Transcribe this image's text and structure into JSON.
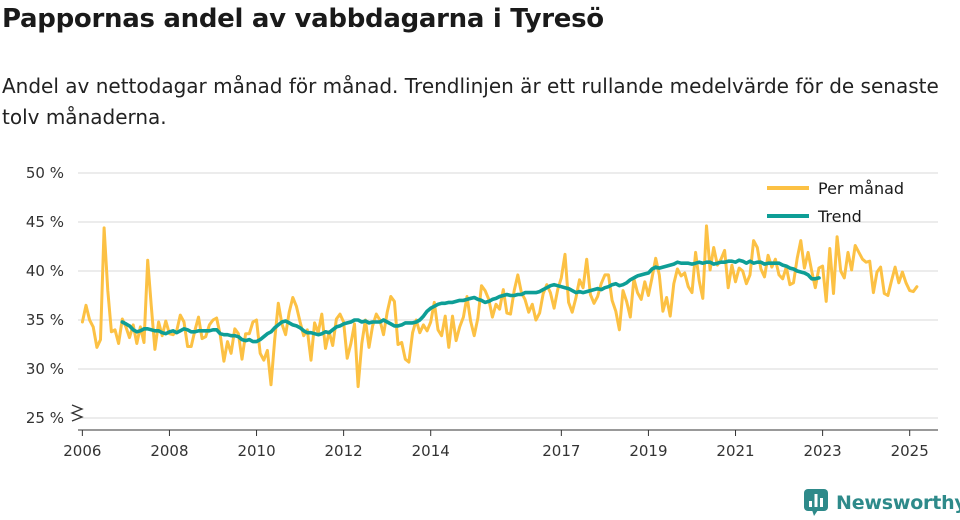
{
  "title": "Pappornas andel av vabbdagarna i Tyresö",
  "subtitle": "Andel av nettodagar månad för månad. Trendlinjen är ett rullande medelvärde för de senaste tolv månaderna.",
  "brand": "Newsworthy",
  "colors": {
    "monthly": "#fcc144",
    "trend": "#0e9e96",
    "grid": "#d9d9d9",
    "axis": "#333333",
    "brand": "#2e8a8a"
  },
  "chart_data": {
    "type": "line",
    "title": "Pappornas andel av vabbdagarna i Tyresö",
    "xlabel": "",
    "ylabel": "",
    "ylim": [
      25,
      50
    ],
    "xlim": [
      2005.9,
      2025.65
    ],
    "yticks": [
      25,
      30,
      35,
      40,
      45,
      50
    ],
    "ytick_labels": [
      "25 %",
      "30 %",
      "35 %",
      "40 %",
      "45 %",
      "50 %"
    ],
    "xticks": [
      2006,
      2008,
      2010,
      2012,
      2014,
      2017,
      2019,
      2021,
      2023,
      2025
    ],
    "xtick_labels": [
      "2006",
      "2008",
      "2010",
      "2012",
      "2014",
      "2017",
      "2019",
      "2021",
      "2023",
      "2025"
    ],
    "legend_position": "top-right",
    "grid": true,
    "series": [
      {
        "name": "Per månad",
        "x_start": 2006.0,
        "step": 0.08333,
        "values": [
          34.8,
          36.5,
          35.0,
          34.3,
          32.2,
          33.0,
          44.4,
          38.0,
          33.8,
          34.0,
          32.6,
          35.1,
          34.3,
          33.2,
          34.5,
          32.6,
          34.3,
          32.7,
          41.1,
          36.4,
          32.0,
          34.8,
          33.4,
          34.9,
          33.6,
          33.5,
          33.9,
          35.5,
          34.8,
          32.3,
          32.3,
          33.9,
          35.3,
          33.1,
          33.3,
          34.5,
          35.0,
          35.2,
          33.5,
          30.8,
          32.8,
          31.6,
          34.1,
          33.6,
          31.0,
          33.6,
          33.6,
          34.8,
          35.0,
          31.6,
          30.9,
          31.9,
          28.4,
          33.0,
          36.7,
          34.6,
          33.5,
          35.8,
          37.3,
          36.4,
          34.8,
          33.4,
          34.0,
          30.9,
          34.7,
          33.7,
          35.6,
          32.1,
          33.8,
          32.4,
          35.1,
          35.6,
          34.8,
          31.1,
          32.6,
          34.6,
          28.2,
          32.6,
          35.0,
          32.2,
          34.4,
          35.6,
          35.0,
          33.5,
          35.8,
          37.4,
          36.9,
          32.5,
          32.7,
          31.0,
          30.7,
          33.7,
          35.0,
          33.7,
          34.5,
          33.9,
          34.8,
          36.8,
          34.0,
          33.4,
          35.4,
          32.2,
          35.4,
          32.9,
          34.3,
          35.3,
          37.4,
          34.9,
          33.4,
          35.2,
          38.5,
          38.0,
          37.1,
          35.3,
          36.6,
          36.1,
          38.1,
          35.7,
          35.6,
          38.0,
          39.6,
          37.8,
          37.1,
          35.8,
          36.6,
          35.0,
          35.7,
          37.7,
          38.6,
          37.8,
          36.2,
          38.1,
          39.3,
          41.7,
          36.8,
          35.8,
          37.2,
          39.1,
          38.3,
          41.2,
          37.6,
          36.7,
          37.4,
          38.7,
          39.6,
          39.6,
          37.0,
          35.9,
          34.0,
          38.0,
          36.9,
          35.3,
          39.2,
          37.8,
          37.1,
          38.9,
          37.5,
          39.3,
          41.3,
          39.6,
          35.9,
          37.3,
          35.4,
          38.7,
          40.2,
          39.5,
          39.8,
          38.4,
          37.8,
          41.9,
          39.0,
          37.2,
          44.6,
          40.1,
          42.4,
          40.6,
          41.2,
          42.1,
          38.3,
          40.6,
          38.9,
          40.3,
          40.0,
          38.7,
          39.6,
          43.1,
          42.4,
          40.2,
          39.4,
          41.6,
          40.4,
          41.2,
          39.6,
          39.2,
          40.4,
          38.6,
          38.8,
          41.3,
          43.1,
          40.3,
          41.9,
          40.0,
          38.3,
          40.3,
          40.5,
          36.9,
          42.3,
          37.7,
          43.5,
          40.0,
          39.3,
          41.9,
          40.1,
          42.6,
          41.9,
          41.2,
          40.9,
          41.0,
          37.8,
          39.9,
          40.4,
          37.7,
          37.5,
          39.0,
          40.4,
          38.8,
          39.9,
          38.8,
          38.0,
          37.9,
          38.4
        ]
      },
      {
        "name": "Trend",
        "x_start": 2006.917,
        "step": 0.08333,
        "values": [
          34.8,
          34.6,
          34.4,
          34.0,
          33.8,
          33.9,
          34.1,
          34.1,
          34.0,
          33.9,
          33.9,
          33.7,
          33.6,
          33.8,
          33.9,
          33.7,
          33.9,
          34.1,
          34.0,
          33.8,
          33.8,
          33.9,
          33.9,
          33.9,
          33.9,
          34.0,
          34.0,
          33.6,
          33.5,
          33.5,
          33.4,
          33.4,
          33.3,
          33.0,
          32.9,
          33.0,
          32.8,
          32.8,
          33.0,
          33.3,
          33.6,
          33.8,
          34.2,
          34.5,
          34.8,
          34.9,
          34.7,
          34.5,
          34.4,
          34.2,
          33.9,
          33.7,
          33.7,
          33.6,
          33.5,
          33.6,
          33.8,
          33.7,
          34.0,
          34.3,
          34.4,
          34.6,
          34.7,
          34.8,
          35.0,
          35.0,
          34.8,
          34.9,
          34.7,
          34.8,
          34.8,
          34.8,
          35.0,
          34.8,
          34.6,
          34.4,
          34.4,
          34.5,
          34.7,
          34.7,
          34.7,
          34.8,
          35.0,
          35.4,
          35.9,
          36.2,
          36.4,
          36.6,
          36.7,
          36.7,
          36.8,
          36.8,
          36.9,
          37.0,
          37.0,
          37.1,
          37.2,
          37.3,
          37.1,
          37.0,
          36.8,
          36.9,
          37.1,
          37.2,
          37.4,
          37.5,
          37.6,
          37.5,
          37.5,
          37.6,
          37.6,
          37.8,
          37.8,
          37.8,
          37.8,
          37.9,
          38.1,
          38.3,
          38.5,
          38.6,
          38.5,
          38.4,
          38.3,
          38.2,
          38.0,
          37.8,
          37.9,
          37.8,
          37.9,
          38.0,
          38.1,
          38.2,
          38.1,
          38.3,
          38.4,
          38.6,
          38.7,
          38.5,
          38.6,
          38.8,
          39.1,
          39.3,
          39.5,
          39.6,
          39.7,
          39.8,
          40.2,
          40.4,
          40.3,
          40.4,
          40.5,
          40.6,
          40.7,
          40.9,
          40.8,
          40.8,
          40.8,
          40.7,
          40.8,
          40.9,
          40.8,
          40.9,
          40.9,
          40.7,
          40.8,
          40.9,
          40.9,
          41.0,
          41.0,
          40.9,
          41.1,
          41.0,
          40.8,
          41.0,
          40.8,
          40.9,
          40.9,
          40.7,
          40.8,
          40.8,
          40.8,
          40.8,
          40.6,
          40.5,
          40.3,
          40.2,
          40.0,
          39.9,
          39.8,
          39.6,
          39.2,
          39.2,
          39.3
        ]
      }
    ]
  }
}
